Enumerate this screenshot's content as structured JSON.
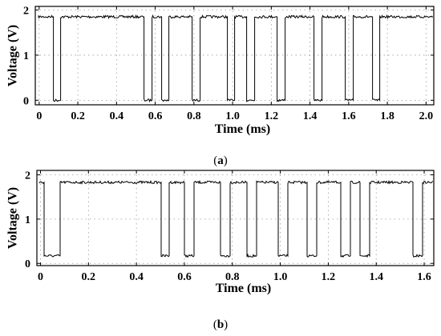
{
  "chart_data": [
    {
      "type": "line",
      "panel_label": "(a)",
      "xlabel": "Time (ms)",
      "ylabel": "Voltage (V)",
      "xlim": [
        -0.02,
        2.04
      ],
      "ylim": [
        -0.1,
        2.08
      ],
      "x_ticks": [
        0,
        0.2,
        0.4,
        0.6,
        0.8,
        1.0,
        1.2,
        1.4,
        1.6,
        1.8,
        2.0
      ],
      "x_tick_labels": [
        "0",
        "0.2",
        "0.4",
        "0.6",
        "0.8",
        "1.0",
        "1.2",
        "1.4",
        "1.6",
        "1.8",
        "2.0"
      ],
      "y_ticks": [
        0,
        1,
        2
      ],
      "y_tick_labels": [
        "0",
        "1",
        "2"
      ],
      "grid": true,
      "high_level": 1.85,
      "low_level": 0.0,
      "low_intervals": [
        [
          0.07,
          0.11
        ],
        [
          0.54,
          0.58
        ],
        [
          0.63,
          0.67
        ],
        [
          0.79,
          0.83
        ],
        [
          0.97,
          1.01
        ],
        [
          1.07,
          1.11
        ],
        [
          1.23,
          1.27
        ],
        [
          1.42,
          1.46
        ],
        [
          1.58,
          1.62
        ],
        [
          1.72,
          1.76
        ]
      ]
    },
    {
      "type": "line",
      "panel_label": "(b)",
      "xlabel": "Time (ms)",
      "ylabel": "Voltage (V)",
      "xlim": [
        -0.015,
        1.64
      ],
      "ylim": [
        -0.05,
        2.1
      ],
      "x_ticks": [
        0,
        0.2,
        0.4,
        0.6,
        0.8,
        1.0,
        1.2,
        1.4,
        1.6
      ],
      "x_tick_labels": [
        "0",
        "0.2",
        "0.4",
        "0.6",
        "0.8",
        "1.0",
        "1.2",
        "1.4",
        "1.6"
      ],
      "y_ticks": [
        0,
        1,
        2
      ],
      "y_tick_labels": [
        "0",
        "1",
        "2"
      ],
      "grid": true,
      "high_level": 1.83,
      "low_level": 0.17,
      "low_intervals": [
        [
          0.015,
          0.08
        ],
        [
          0.5,
          0.535
        ],
        [
          0.6,
          0.64
        ],
        [
          0.75,
          0.79
        ],
        [
          0.86,
          0.9
        ],
        [
          0.99,
          1.03
        ],
        [
          1.11,
          1.15
        ],
        [
          1.25,
          1.29
        ],
        [
          1.33,
          1.37
        ],
        [
          1.55,
          1.59
        ]
      ]
    }
  ]
}
